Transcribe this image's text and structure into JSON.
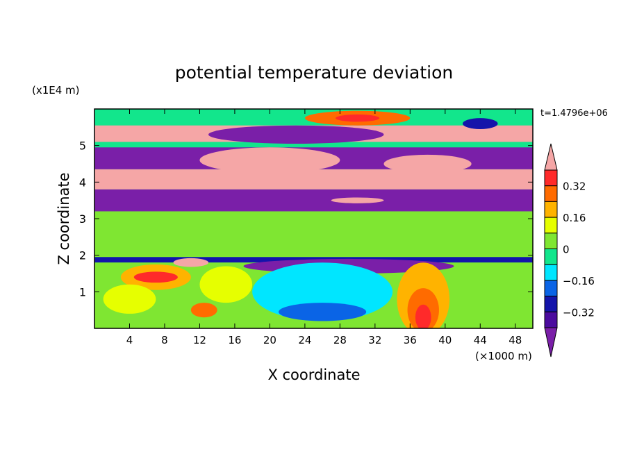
{
  "chart_data": {
    "type": "heatmap",
    "title": "potential temperature deviation",
    "xlabel": "X coordinate",
    "ylabel": "Z coordinate",
    "x_unit": "(×1000 m)",
    "y_unit": "(x1E4 m)",
    "time_label": "t=1.4796e+06",
    "xlim": [
      0,
      50
    ],
    "ylim": [
      0,
      6
    ],
    "x_ticks": [
      4,
      8,
      12,
      16,
      20,
      24,
      28,
      32,
      36,
      40,
      44,
      48
    ],
    "y_ticks": [
      1,
      2,
      3,
      4,
      5
    ],
    "colorbar": {
      "levels": [
        -0.4,
        -0.32,
        -0.24,
        -0.16,
        -0.08,
        0,
        0.08,
        0.16,
        0.24,
        0.32,
        0.4
      ],
      "tick_labels": [
        "0.32",
        "0.16",
        "0",
        "−0.16",
        "−0.32"
      ],
      "tick_values": [
        0.32,
        0.16,
        0,
        -0.16,
        -0.32
      ],
      "colors": [
        "#7a1fa8",
        "#4b0b9e",
        "#1414aa",
        "#0a64e6",
        "#00e6ff",
        "#12e68c",
        "#7fe632",
        "#e6ff00",
        "#ffb300",
        "#ff6b00",
        "#ff2a2a",
        "#f5a6a6"
      ]
    },
    "bands": [
      {
        "z0": 5.1,
        "z1": 5.55,
        "value": 0.45
      },
      {
        "z0": 4.35,
        "z1": 4.95,
        "value": -0.45
      },
      {
        "z0": 3.8,
        "z1": 4.35,
        "value": 0.45
      },
      {
        "z0": 3.2,
        "z1": 3.8,
        "value": -0.45
      },
      {
        "z0": 1.95,
        "z1": 3.2,
        "value": 0.02
      },
      {
        "z0": 1.8,
        "z1": 1.95,
        "value": -0.3
      },
      {
        "z0": 0,
        "z1": 1.8,
        "value": 0.06
      }
    ],
    "features": [
      {
        "x": 30,
        "z": 5.75,
        "rx": 6,
        "rz": 0.2,
        "value": 0.25
      },
      {
        "x": 30,
        "z": 5.75,
        "rx": 2.5,
        "rz": 0.1,
        "value": 0.35
      },
      {
        "x": 23,
        "z": 5.3,
        "rx": 10,
        "rz": 0.25,
        "value": -0.45
      },
      {
        "x": 44,
        "z": 5.6,
        "rx": 2,
        "rz": 0.15,
        "value": -0.3
      },
      {
        "x": 20,
        "z": 4.6,
        "rx": 8,
        "rz": 0.35,
        "value": 0.45
      },
      {
        "x": 38,
        "z": 4.5,
        "rx": 5,
        "rz": 0.25,
        "value": 0.45
      },
      {
        "x": 30,
        "z": 3.5,
        "rx": 3,
        "rz": 0.08,
        "value": 0.45
      },
      {
        "x": 29,
        "z": 1.7,
        "rx": 12,
        "rz": 0.2,
        "value": -0.45
      },
      {
        "x": 26,
        "z": 1.0,
        "rx": 8,
        "rz": 0.8,
        "value": -0.12
      },
      {
        "x": 26,
        "z": 0.45,
        "rx": 5,
        "rz": 0.25,
        "value": -0.22
      },
      {
        "x": 37.5,
        "z": 0.8,
        "rx": 3,
        "rz": 1.0,
        "value": 0.2
      },
      {
        "x": 37.5,
        "z": 0.5,
        "rx": 1.8,
        "rz": 0.6,
        "value": 0.3
      },
      {
        "x": 37.5,
        "z": 0.3,
        "rx": 0.9,
        "rz": 0.35,
        "value": 0.38
      },
      {
        "x": 7,
        "z": 1.4,
        "rx": 4,
        "rz": 0.35,
        "value": 0.2
      },
      {
        "x": 7,
        "z": 1.4,
        "rx": 2.5,
        "rz": 0.15,
        "value": 0.32
      },
      {
        "x": 12.5,
        "z": 0.5,
        "rx": 1.5,
        "rz": 0.2,
        "value": 0.25
      },
      {
        "x": 11,
        "z": 1.8,
        "rx": 2,
        "rz": 0.12,
        "value": 0.45
      },
      {
        "x": 4,
        "z": 0.8,
        "rx": 3,
        "rz": 0.4,
        "value": 0.08
      },
      {
        "x": 15,
        "z": 1.2,
        "rx": 3,
        "rz": 0.5,
        "value": 0.15
      }
    ]
  }
}
